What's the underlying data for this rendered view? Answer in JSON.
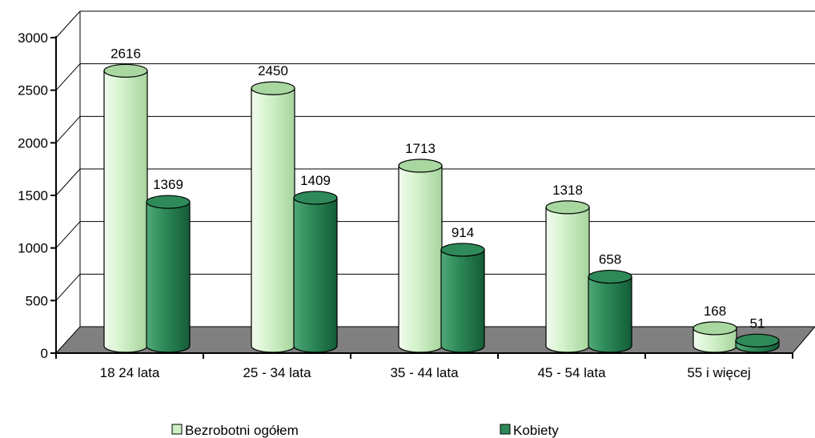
{
  "chart_data": {
    "type": "bar",
    "categories": [
      "18 24 lata",
      "25 - 34 lata",
      "35 - 44 lata",
      "45 - 54 lata",
      "55 i więcej"
    ],
    "series": [
      {
        "name": "Bezrobotni ogółem",
        "values": [
          2616,
          2450,
          1713,
          1318,
          168
        ]
      },
      {
        "name": "Kobiety",
        "values": [
          1369,
          1409,
          914,
          658,
          51
        ]
      }
    ],
    "ylim": [
      0,
      3000
    ],
    "yticks": [
      0,
      500,
      1000,
      1500,
      2000,
      2500,
      3000
    ],
    "grid": true,
    "legend_position": "bottom",
    "colors": {
      "series1_light": "#e8f8e0",
      "series1_mid": "#ccefc4",
      "series1_dark": "#a8d8a0",
      "series2_light": "#48a070",
      "series2_mid": "#2f8a59",
      "series2_dark": "#14613a",
      "floor": "#808080",
      "grid": "#000000"
    }
  }
}
